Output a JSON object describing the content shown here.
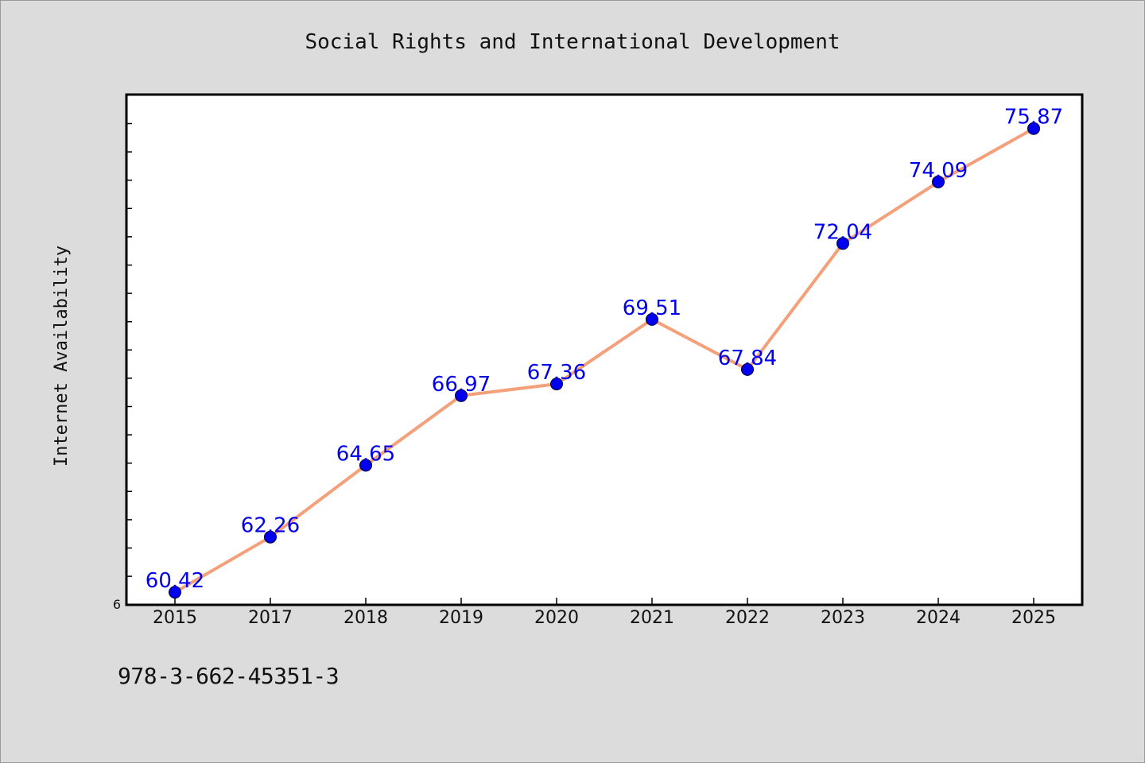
{
  "chart_data": {
    "type": "line",
    "title": "Social Rights and International Development",
    "xlabel": "",
    "ylabel": "Internet Availability",
    "categories": [
      "2015",
      "2017",
      "2018",
      "2019",
      "2020",
      "2021",
      "2022",
      "2023",
      "2024",
      "2025"
    ],
    "series": [
      {
        "values": [
          60.42,
          62.26,
          64.65,
          66.97,
          67.36,
          69.51,
          67.84,
          72.04,
          74.09,
          75.87
        ],
        "data_labels": [
          "60.42",
          "62.26",
          "64.65",
          "66.97",
          "67.36",
          "69.51",
          "67.84",
          "72.04",
          "74.09",
          "75.87"
        ],
        "line_color": "#f4a07a",
        "marker_color": "#0000ee",
        "label_color": "#0000ee"
      }
    ],
    "ylim": [
      60,
      77
    ],
    "y_tick_label": "6",
    "grid": false,
    "legend": "none"
  },
  "footer": {
    "isbn": "978-3-662-45351-3"
  }
}
